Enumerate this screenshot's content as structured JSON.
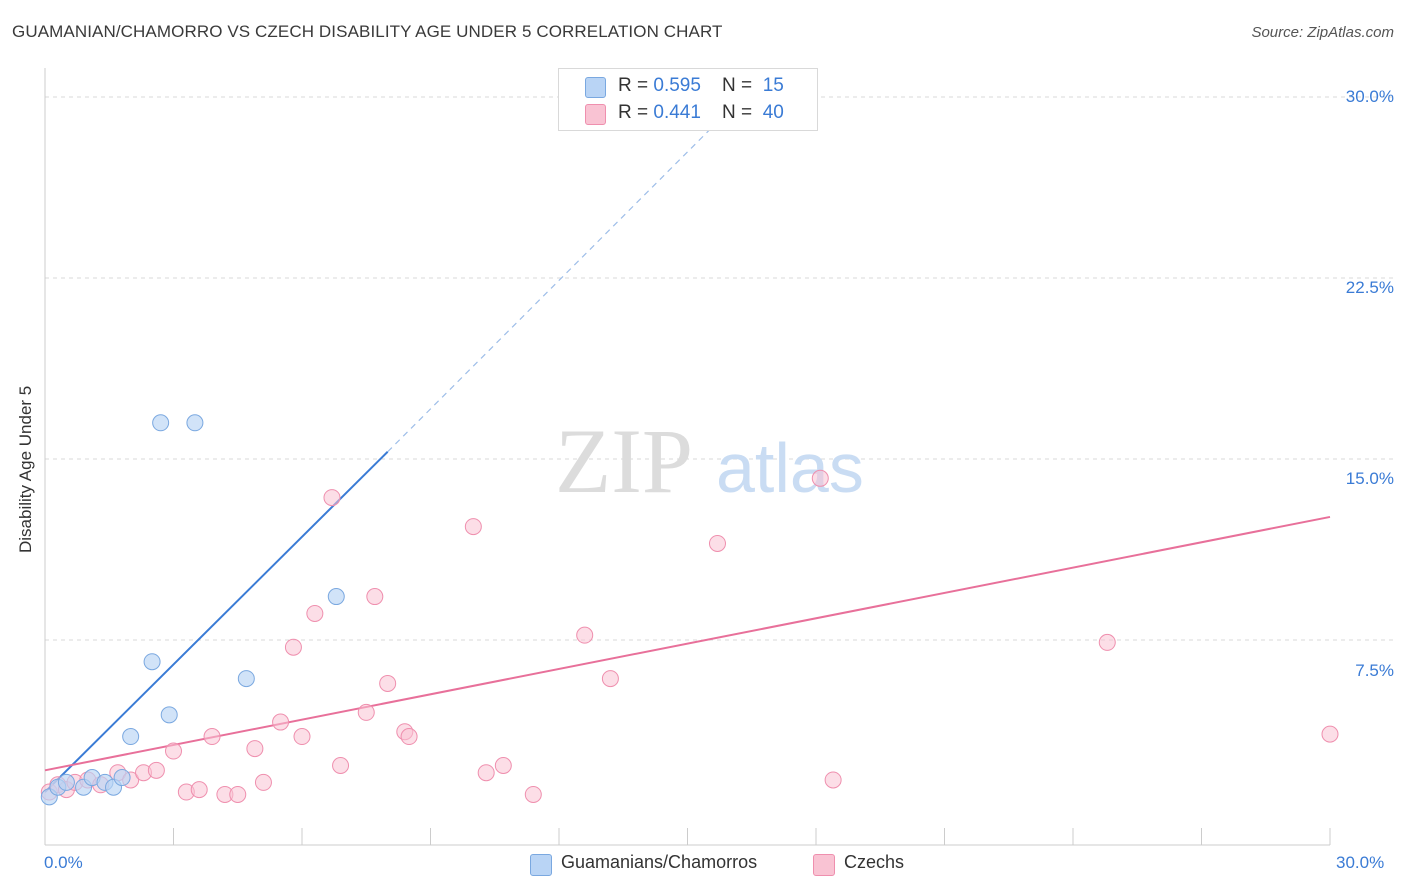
{
  "title": "GUAMANIAN/CHAMORRO VS CZECH DISABILITY AGE UNDER 5 CORRELATION CHART",
  "source": "Source: ZipAtlas.com",
  "watermark": {
    "zip": "ZIP",
    "atlas": "atlas"
  },
  "legend_top": {
    "rows": [
      {
        "r_label": "R = ",
        "r_value": "0.595",
        "n_label": "N = ",
        "n_value": "15"
      },
      {
        "r_label": "R = ",
        "r_value": "0.441",
        "n_label": "N = ",
        "n_value": "40"
      }
    ]
  },
  "legend_bottom": {
    "items": [
      {
        "label": "Guamanians/Chamorros"
      },
      {
        "label": "Czechs"
      }
    ]
  },
  "colors": {
    "blue_fill": "#b9d4f5",
    "blue_stroke": "#7aa8e0",
    "blue_line": "#3a7bd5",
    "pink_fill": "#f9c3d3",
    "pink_stroke": "#ef8fae",
    "pink_line": "#e8709a",
    "grid": "#d8d8d8",
    "tick_text": "#3a7bd5"
  },
  "chart_data": {
    "type": "scatter",
    "title": "GUAMANIAN/CHAMORRO VS CZECH DISABILITY AGE UNDER 5 CORRELATION CHART",
    "xlabel": "",
    "ylabel": "Disability Age Under 5",
    "xlim": [
      0,
      30
    ],
    "ylim": [
      0,
      30
    ],
    "x_tick_labels": [
      "0.0%",
      "30.0%"
    ],
    "y_tick_labels": [
      "7.5%",
      "15.0%",
      "22.5%",
      "30.0%"
    ],
    "y_tick_values": [
      7.5,
      15,
      22.5,
      30
    ],
    "series": [
      {
        "name": "Guamanians/Chamorros",
        "color": "blue",
        "R": 0.595,
        "N": 15,
        "points": [
          [
            0.1,
            1.0
          ],
          [
            0.3,
            1.4
          ],
          [
            0.5,
            1.6
          ],
          [
            0.9,
            1.4
          ],
          [
            1.1,
            1.8
          ],
          [
            1.4,
            1.6
          ],
          [
            1.6,
            1.4
          ],
          [
            1.8,
            1.8
          ],
          [
            2.0,
            3.5
          ],
          [
            2.5,
            6.6
          ],
          [
            2.7,
            16.5
          ],
          [
            2.9,
            4.4
          ],
          [
            3.5,
            16.5
          ],
          [
            4.7,
            5.9
          ],
          [
            6.8,
            9.3
          ]
        ],
        "trend": {
          "x0": 0.0,
          "y0": 1.2,
          "x1": 8.0,
          "y1": 15.3,
          "dashed_to": [
            16.0,
            29.5
          ]
        }
      },
      {
        "name": "Czechs",
        "color": "pink",
        "R": 0.441,
        "N": 40,
        "points": [
          [
            0.1,
            1.2
          ],
          [
            0.3,
            1.5
          ],
          [
            0.5,
            1.3
          ],
          [
            0.7,
            1.6
          ],
          [
            1.0,
            1.7
          ],
          [
            1.3,
            1.5
          ],
          [
            1.7,
            2.0
          ],
          [
            2.0,
            1.7
          ],
          [
            2.3,
            2.0
          ],
          [
            2.6,
            2.1
          ],
          [
            3.0,
            2.9
          ],
          [
            3.3,
            1.2
          ],
          [
            3.6,
            1.3
          ],
          [
            3.9,
            3.5
          ],
          [
            4.2,
            1.1
          ],
          [
            4.5,
            1.1
          ],
          [
            4.9,
            3.0
          ],
          [
            5.1,
            1.6
          ],
          [
            5.5,
            4.1
          ],
          [
            5.8,
            7.2
          ],
          [
            6.0,
            3.5
          ],
          [
            6.3,
            8.6
          ],
          [
            6.7,
            13.4
          ],
          [
            6.9,
            2.3
          ],
          [
            7.5,
            4.5
          ],
          [
            7.7,
            9.3
          ],
          [
            8.0,
            5.7
          ],
          [
            8.4,
            3.7
          ],
          [
            8.5,
            3.5
          ],
          [
            10.0,
            12.2
          ],
          [
            10.3,
            2.0
          ],
          [
            10.7,
            2.3
          ],
          [
            11.4,
            1.1
          ],
          [
            12.6,
            7.7
          ],
          [
            13.2,
            5.9
          ],
          [
            15.7,
            11.5
          ],
          [
            18.1,
            14.2
          ],
          [
            18.4,
            1.7
          ],
          [
            24.8,
            7.4
          ],
          [
            30.0,
            3.6
          ]
        ],
        "trend": {
          "x0": 0.0,
          "y0": 2.1,
          "x1": 30.0,
          "y1": 12.6
        }
      }
    ]
  }
}
